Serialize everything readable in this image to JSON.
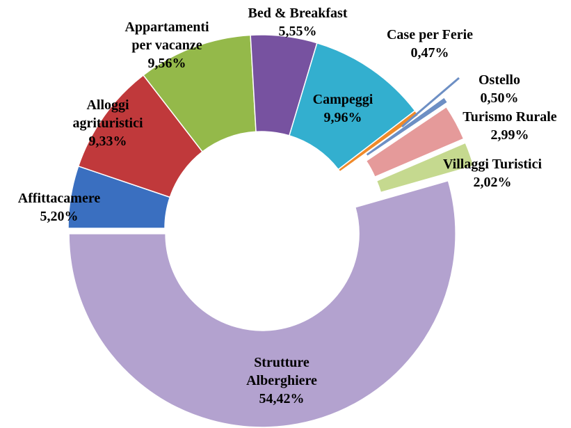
{
  "chart_data": {
    "type": "donut",
    "categories": [
      "Affittacamere",
      "Alloggi agrituristici",
      "Appartamenti per vacanze",
      "Bed & Breakfast",
      "Campeggi",
      "Case per Ferie",
      "Ostello",
      "Turismo Rurale",
      "Villaggi Turistici",
      "Strutture Alberghiere"
    ],
    "values": [
      5.2,
      9.33,
      9.56,
      5.55,
      9.96,
      0.47,
      0.5,
      2.99,
      2.02,
      54.42
    ],
    "value_labels": [
      "5,20%",
      "9,33%",
      "9,56%",
      "5,55%",
      "9,96%",
      "0,47%",
      "0,50%",
      "2,99%",
      "2,02%",
      "54,42%"
    ],
    "colors": [
      "#3a6fc0",
      "#c0393b",
      "#94b94a",
      "#7752a0",
      "#33afcf",
      "#f08a2a",
      "#6d8fc4",
      "#e59a9a",
      "#c5d98f",
      "#b3a2cf"
    ]
  }
}
